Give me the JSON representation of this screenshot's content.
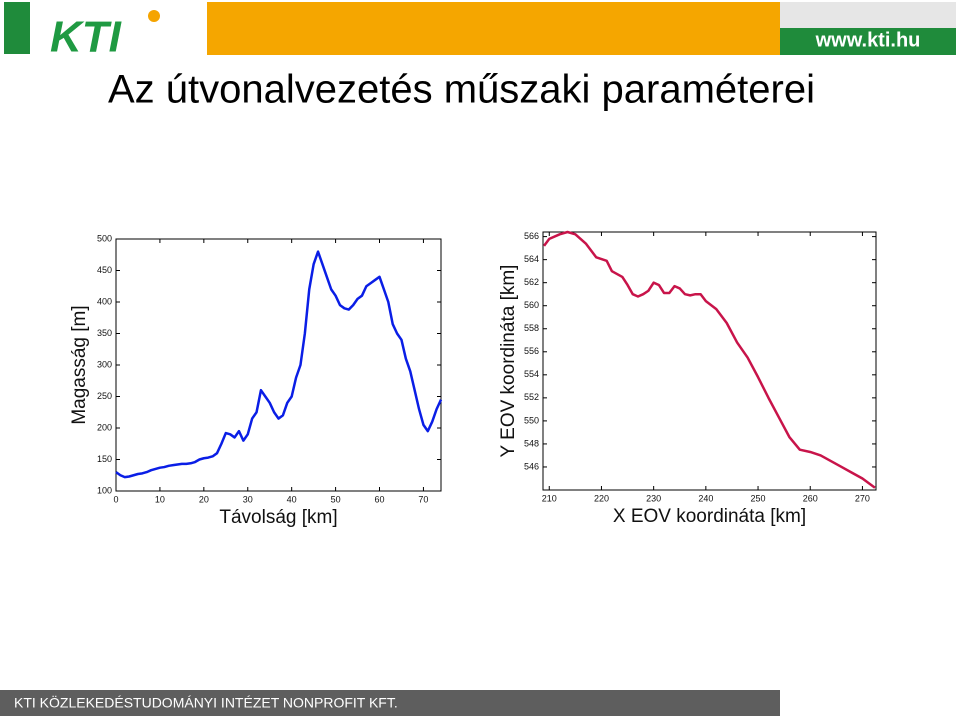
{
  "header": {
    "logo": "KTI",
    "url": "www.kti.hu",
    "title": "Az útvonalvezetés műszaki paraméterei"
  },
  "footer": {
    "text": "KTI KÖZLEKEDÉSTUDOMÁNYI INTÉZET NONPROFIT KFT."
  },
  "chart_data": [
    {
      "type": "line",
      "xlabel": "Távolság [km]",
      "ylabel": "Magasság [m]",
      "color": "#0a1ee6",
      "x": [
        0,
        1,
        2,
        3,
        4,
        5,
        6,
        7,
        8,
        9,
        10,
        11,
        12,
        13,
        14,
        15,
        16,
        17,
        18,
        19,
        20,
        21,
        22,
        23,
        24,
        25,
        26,
        27,
        28,
        29,
        30,
        31,
        32,
        33,
        34,
        35,
        36,
        37,
        38,
        39,
        40,
        41,
        42,
        43,
        44,
        45,
        46,
        47,
        48,
        49,
        50,
        51,
        52,
        53,
        54,
        55,
        56,
        57,
        58,
        59,
        60,
        61,
        62,
        63,
        64,
        65,
        66,
        67,
        68,
        69,
        70,
        71,
        72,
        73,
        74
      ],
      "values": [
        130,
        125,
        122,
        123,
        125,
        127,
        128,
        130,
        133,
        135,
        137,
        138,
        140,
        141,
        142,
        143,
        143,
        144,
        146,
        150,
        152,
        153,
        155,
        160,
        175,
        192,
        190,
        185,
        195,
        180,
        190,
        215,
        225,
        260,
        250,
        240,
        225,
        215,
        220,
        240,
        250,
        280,
        300,
        350,
        420,
        460,
        480,
        460,
        440,
        420,
        410,
        395,
        390,
        388,
        395,
        405,
        410,
        425,
        430,
        435,
        440,
        420,
        400,
        365,
        350,
        340,
        310,
        290,
        260,
        230,
        205,
        195,
        210,
        230,
        245
      ],
      "xlim": [
        0,
        74
      ],
      "ylim": [
        100,
        500
      ],
      "xticks": [
        0,
        10,
        20,
        30,
        40,
        50,
        60,
        70
      ],
      "yticks": [
        100,
        150,
        200,
        250,
        300,
        350,
        400,
        450,
        500
      ]
    },
    {
      "type": "line",
      "xlabel": "X EOV koordináta [km]",
      "ylabel": "Y EOV koordináta [km]",
      "color": "#c8144a",
      "x": [
        209,
        210,
        212,
        213.5,
        215,
        217,
        219,
        221,
        222,
        224,
        225,
        226,
        227,
        228,
        229,
        230,
        231,
        232,
        233,
        234,
        235,
        236,
        237,
        238,
        239,
        240,
        242,
        244,
        246,
        248,
        250,
        252,
        254,
        256,
        258,
        260,
        262,
        264,
        266,
        268,
        270,
        272.4
      ],
      "values": [
        565.2,
        565.8,
        566.2,
        566.4,
        566.2,
        565.4,
        564.2,
        563.9,
        563,
        562.5,
        561.8,
        561,
        560.8,
        561,
        561.3,
        562,
        561.8,
        561.1,
        561.1,
        561.7,
        561.5,
        561,
        560.9,
        561,
        561,
        560.4,
        559.7,
        558.5,
        556.8,
        555.5,
        553.8,
        552,
        550.3,
        548.6,
        547.5,
        547.3,
        547,
        546.5,
        546,
        545.5,
        545,
        544.2
      ],
      "xlim": [
        208.8,
        272.6
      ],
      "ylim": [
        544,
        566.4
      ],
      "xticks": [
        210,
        220,
        230,
        240,
        250,
        260,
        270
      ],
      "yticks": [
        546,
        548,
        550,
        552,
        554,
        556,
        558,
        560,
        562,
        564,
        566
      ]
    }
  ]
}
